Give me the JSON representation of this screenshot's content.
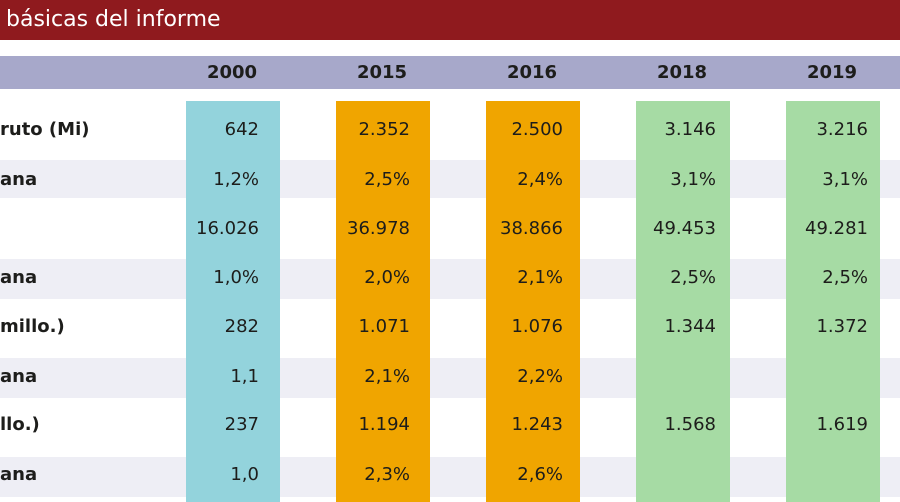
{
  "title": "básicas del informe",
  "colors": {
    "title_bg": "#8f1a1e",
    "header_bg": "#a7a8ca",
    "stripe_bg": "#eeeef5",
    "col_2000": "#93d3dc",
    "col_2015": "#f0a500",
    "col_2016": "#f0a500",
    "col_2018": "#a6dba4",
    "col_2019": "#a6dba4"
  },
  "table": {
    "headers": [
      "2000",
      "2015",
      "2016",
      "2018",
      "2019"
    ],
    "rows": [
      {
        "label": "ruto (Mi)",
        "values": [
          "642",
          "2.352",
          "2.500",
          "3.146",
          "3.216"
        ]
      },
      {
        "label": "ana",
        "values": [
          "1,2%",
          "2,5%",
          "2,4%",
          "3,1%",
          "3,1%"
        ]
      },
      {
        "label": "",
        "values": [
          "16.026",
          "36.978",
          "38.866",
          "49.453",
          "49.281"
        ]
      },
      {
        "label": "ana",
        "values": [
          "1,0%",
          "2,0%",
          "2,1%",
          "2,5%",
          "2,5%"
        ]
      },
      {
        "label": "millo.)",
        "values": [
          "282",
          "1.071",
          "1.076",
          "1.344",
          "1.372"
        ]
      },
      {
        "label": "ana",
        "values": [
          "1,1",
          "2,1%",
          "2,2%",
          "",
          ""
        ]
      },
      {
        "label": "llo.)",
        "values": [
          "237",
          "1.194",
          "1.243",
          "1.568",
          "1.619"
        ]
      },
      {
        "label": "ana",
        "values": [
          "1,0",
          "2,3%",
          "2,6%",
          "",
          ""
        ]
      }
    ]
  }
}
